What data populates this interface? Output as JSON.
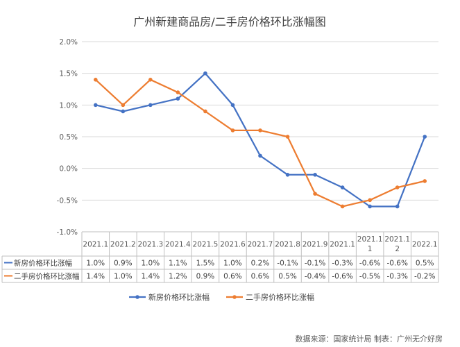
{
  "chart_data": {
    "type": "line",
    "title": "广州新建商品房/二手房价格环比涨幅图",
    "categories": [
      "2021.1",
      "2021.2",
      "2021.3",
      "2021.4",
      "2021.5",
      "2021.6",
      "2021.7",
      "2021.8",
      "2021.9",
      "2021.1",
      "2021.1\n1",
      "2021.1\n2",
      "2022.1"
    ],
    "y_ticks": [
      "2.0%",
      "1.5%",
      "1.0%",
      "0.5%",
      "0.0%",
      "-0.5%",
      "-1.0%"
    ],
    "ylim": [
      -1.0,
      2.0
    ],
    "grid": true,
    "series": [
      {
        "name": "新房价格环比涨幅",
        "color": "#4472C4",
        "values": [
          1.0,
          0.9,
          1.0,
          1.1,
          1.5,
          1.0,
          0.2,
          -0.1,
          -0.1,
          -0.3,
          -0.6,
          -0.6,
          0.5
        ],
        "labels": [
          "1.0%",
          "0.9%",
          "1.0%",
          "1.1%",
          "1.5%",
          "1.0%",
          "0.2%",
          "-0.1%",
          "-0.1%",
          "-0.3%",
          "-0.6%",
          "-0.6%",
          "0.5%"
        ]
      },
      {
        "name": "二手房价格环比涨幅",
        "color": "#ED7D31",
        "values": [
          1.4,
          1.0,
          1.4,
          1.2,
          0.9,
          0.6,
          0.6,
          0.5,
          -0.4,
          -0.6,
          -0.5,
          -0.3,
          -0.2
        ],
        "labels": [
          "1.4%",
          "1.0%",
          "1.4%",
          "1.2%",
          "0.9%",
          "0.6%",
          "0.6%",
          "0.5%",
          "-0.4%",
          "-0.6%",
          "-0.5%",
          "-0.3%",
          "-0.2%"
        ]
      }
    ],
    "legend_position": "bottom",
    "data_table": true
  },
  "source_note": "数据来源：国家统计局 制表：广州无介好房"
}
